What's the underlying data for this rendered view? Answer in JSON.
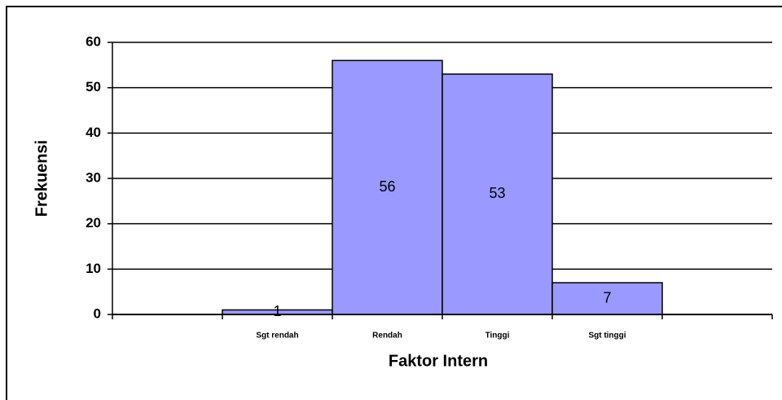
{
  "chart_data": {
    "type": "bar",
    "x_label": "Faktor Intern",
    "y_label": "Frekuensi",
    "categories": [
      null,
      "Sgt rendah",
      "Rendah",
      "Tinggi",
      "Sgt tinggi",
      null
    ],
    "values": [
      null,
      1,
      56,
      53,
      7,
      null
    ],
    "color": "#9999ff",
    "ylim": [
      0,
      60
    ],
    "yticks": [
      0,
      10,
      20,
      30,
      40,
      50,
      60
    ],
    "grid": true
  }
}
